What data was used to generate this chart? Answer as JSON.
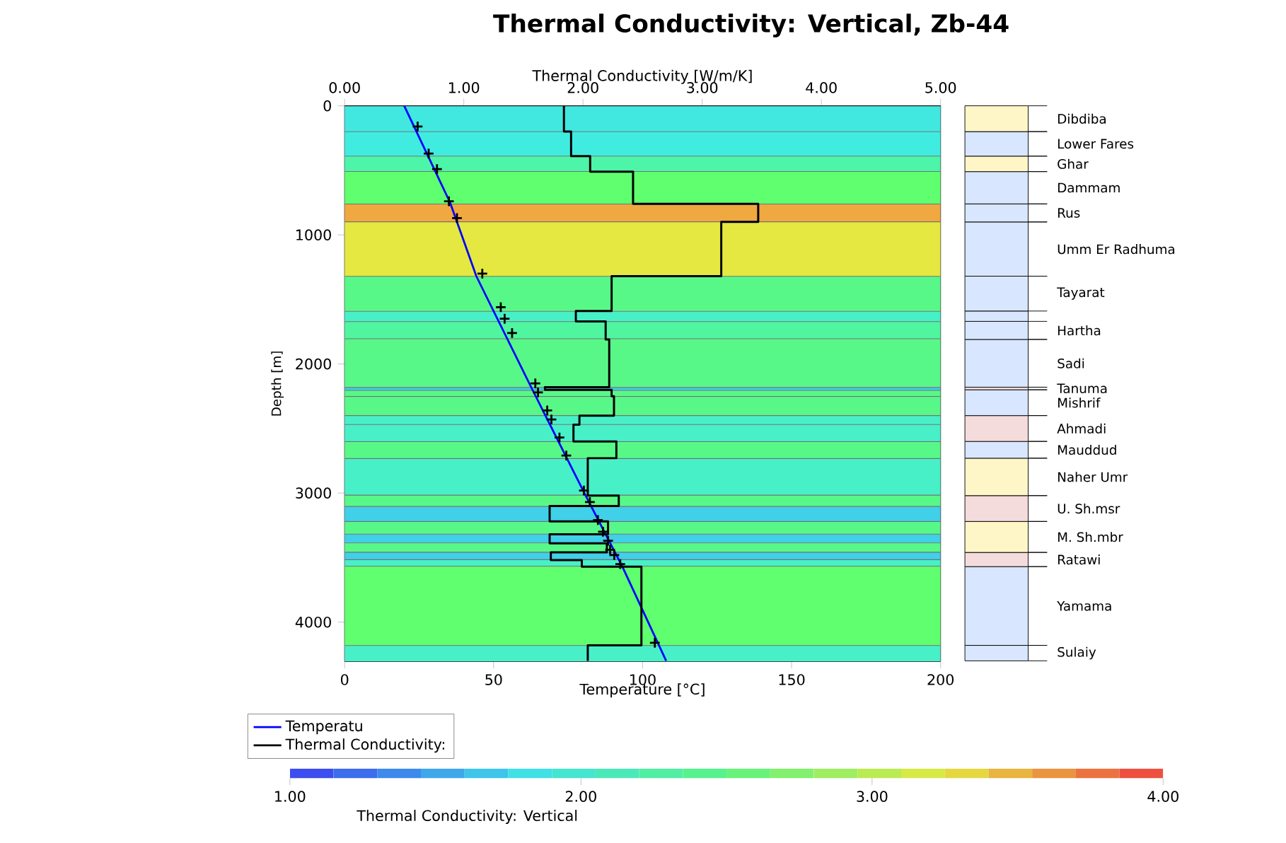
{
  "chart_data": [
    {
      "type": "line",
      "title": "Thermal Conductivity: Vertical, Zb-44",
      "xlabel": "Temperature [°C]",
      "x2label": "Thermal Conductivity [W/m/K]",
      "ylabel": "Depth [m]",
      "xlim": [
        0,
        200
      ],
      "xticks": [
        0,
        50,
        100,
        150,
        200
      ],
      "x2lim": [
        0,
        5
      ],
      "x2ticks": [
        {
          "value": 0,
          "label": "0.00"
        },
        {
          "value": 1,
          "label": "1.00"
        },
        {
          "value": 2,
          "label": "2.00"
        },
        {
          "value": 3,
          "label": "3.00"
        },
        {
          "value": 4,
          "label": "4.00"
        },
        {
          "value": 5,
          "label": "5.00"
        }
      ],
      "ylim": [
        4305,
        0
      ],
      "yticks": [
        0,
        1000,
        2000,
        3000,
        4000
      ],
      "series": [
        {
          "name": "Temperatu",
          "color": "#0000ff",
          "x": [
            20,
            35.4,
            44.2,
            62.6,
            80.9,
            93.2,
            107.9
          ],
          "values": [
            0,
            750,
            1320,
            2180,
            3020,
            3570,
            4300
          ]
        },
        {
          "name": "Thermal Conductivity:",
          "type": "step",
          "axis": "x2",
          "color": "#000000",
          "x": [
            1.84,
            1.9,
            2.06,
            2.42,
            3.47,
            3.16,
            2.24,
            1.94,
            2.19,
            2.22,
            1.68,
            2.24,
            2.26,
            1.97,
            1.92,
            2.28,
            2.04,
            2.3,
            1.72,
            2.21,
            1.72,
            2.2,
            1.73,
            1.99,
            2.49,
            2.04,
            2.04
          ],
          "values": [
            0,
            200,
            390,
            510,
            760,
            900,
            1320,
            1590,
            1670,
            1810,
            2180,
            2200,
            2250,
            2400,
            2470,
            2600,
            2730,
            3020,
            3100,
            3220,
            3320,
            3390,
            3460,
            3520,
            3570,
            4180,
            4300
          ]
        },
        {
          "type": "scatter",
          "marker": "cross",
          "color": "#000000",
          "x": [
            24.5,
            28.2,
            31.0,
            35.0,
            37.7,
            46.2,
            52.4,
            53.7,
            56.2,
            64.0,
            64.9,
            68.0,
            69.4,
            72.1,
            74.4,
            80.3,
            82.3,
            85.0,
            86.7,
            88.4,
            89.1,
            90.5,
            92.5,
            104.1
          ],
          "values": [
            160,
            370,
            490,
            740,
            870,
            1300,
            1560,
            1650,
            1760,
            2150,
            2220,
            2360,
            2430,
            2570,
            2710,
            2980,
            3070,
            3210,
            3300,
            3370,
            3440,
            3480,
            3550,
            4160
          ]
        }
      ],
      "bands": [
        {
          "axis": "y",
          "from": 0,
          "to": 201,
          "color": "#40e8e0"
        },
        {
          "axis": "y",
          "from": 201,
          "to": 390,
          "color": "#40ece0"
        },
        {
          "axis": "y",
          "from": 390,
          "to": 509,
          "color": "#4cf5a8"
        },
        {
          "axis": "y",
          "from": 509,
          "to": 761,
          "color": "#60ff70"
        },
        {
          "axis": "y",
          "from": 761,
          "to": 899,
          "color": "#f0a840"
        },
        {
          "axis": "y",
          "from": 899,
          "to": 1321,
          "color": "#e4e840"
        },
        {
          "axis": "y",
          "from": 1321,
          "to": 1592,
          "color": "#58f888"
        },
        {
          "axis": "y",
          "from": 1592,
          "to": 1673,
          "color": "#48f0c8"
        },
        {
          "axis": "y",
          "from": 1673,
          "to": 1805,
          "color": "#50f5a0"
        },
        {
          "axis": "y",
          "from": 1805,
          "to": 2182,
          "color": "#58f888"
        },
        {
          "axis": "y",
          "from": 2182,
          "to": 2205,
          "color": "#40d0e8"
        },
        {
          "axis": "y",
          "from": 2205,
          "to": 2252,
          "color": "#58f888"
        },
        {
          "axis": "y",
          "from": 2252,
          "to": 2400,
          "color": "#58f888"
        },
        {
          "axis": "y",
          "from": 2400,
          "to": 2469,
          "color": "#48f0c8"
        },
        {
          "axis": "y",
          "from": 2469,
          "to": 2601,
          "color": "#48f0c8"
        },
        {
          "axis": "y",
          "from": 2601,
          "to": 2733,
          "color": "#58f888"
        },
        {
          "axis": "y",
          "from": 2733,
          "to": 3016,
          "color": "#48f0c8"
        },
        {
          "axis": "y",
          "from": 3016,
          "to": 3104,
          "color": "#58f888"
        },
        {
          "axis": "y",
          "from": 3104,
          "to": 3220,
          "color": "#40d0e8"
        },
        {
          "axis": "y",
          "from": 3220,
          "to": 3318,
          "color": "#58f888"
        },
        {
          "axis": "y",
          "from": 3318,
          "to": 3387,
          "color": "#40d0e8"
        },
        {
          "axis": "y",
          "from": 3387,
          "to": 3459,
          "color": "#58f888"
        },
        {
          "axis": "y",
          "from": 3459,
          "to": 3516,
          "color": "#40d0e8"
        },
        {
          "axis": "y",
          "from": 3516,
          "to": 3566,
          "color": "#48f0c8"
        },
        {
          "axis": "y",
          "from": 3566,
          "to": 4182,
          "color": "#60ff70"
        },
        {
          "axis": "y",
          "from": 4182,
          "to": 4305,
          "color": "#48f0c8"
        }
      ],
      "clabel": "Thermal Conductivity: Vertical",
      "clim": [
        1,
        4
      ],
      "cticks": [
        {
          "value": 1,
          "label": "1.00"
        },
        {
          "value": 2,
          "label": "2.00"
        },
        {
          "value": 3,
          "label": "3.00"
        },
        {
          "value": 4,
          "label": "4.00"
        }
      ],
      "legend": "bottom"
    },
    {
      "type": "bar",
      "stacked": true,
      "legend": "right",
      "ylim": [
        4305,
        0
      ],
      "tick_labels": false,
      "categories": [
        null
      ],
      "series": [
        {
          "name": "Dibdiba",
          "color": "#fff6c8",
          "values": [
            200
          ]
        },
        {
          "name": "Lower Fares",
          "color": "#d8e6ff",
          "values": [
            190
          ]
        },
        {
          "name": "Ghar",
          "color": "#fff6c8",
          "values": [
            120
          ]
        },
        {
          "name": "Dammam",
          "color": "#d8e6ff",
          "values": [
            250
          ]
        },
        {
          "name": "Rus",
          "color": "#d8e6ff",
          "values": [
            140
          ]
        },
        {
          "name": "Umm Er Radhuma",
          "color": "#d8e6ff",
          "values": [
            420
          ]
        },
        {
          "name": "Tayarat",
          "color": "#d8e6ff",
          "values": [
            270
          ]
        },
        {
          "color": "#d8e6ff",
          "values": [
            80
          ]
        },
        {
          "name": "Hartha",
          "color": "#d8e6ff",
          "values": [
            140
          ]
        },
        {
          "name": "Sadi",
          "color": "#d8e6ff",
          "values": [
            370
          ]
        },
        {
          "name": "Tanuma",
          "color": "#f4dcdc",
          "values": [
            20
          ]
        },
        {
          "name": "Mishrif",
          "color": "#d8e6ff",
          "values": [
            200
          ]
        },
        {
          "name": "Ahmadi",
          "color": "#f4dcdc",
          "values": [
            200
          ]
        },
        {
          "name": "Mauddud",
          "color": "#d8e6ff",
          "values": [
            130
          ]
        },
        {
          "name": "Naher Umr",
          "color": "#fff6c8",
          "values": [
            290
          ]
        },
        {
          "name": "U. Sh.msr",
          "color": "#f4dcdc",
          "values": [
            200
          ]
        },
        {
          "name": "M. Sh.mbr",
          "color": "#fff6c8",
          "values": [
            240
          ]
        },
        {
          "name": "Ratawi",
          "color": "#f4dcdc",
          "values": [
            110
          ]
        },
        {
          "name": "Yamama",
          "color": "#d8e6ff",
          "values": [
            610
          ]
        },
        {
          "name": "Sulaiy",
          "color": "#d8e6ff",
          "values": [
            120
          ]
        }
      ]
    }
  ]
}
